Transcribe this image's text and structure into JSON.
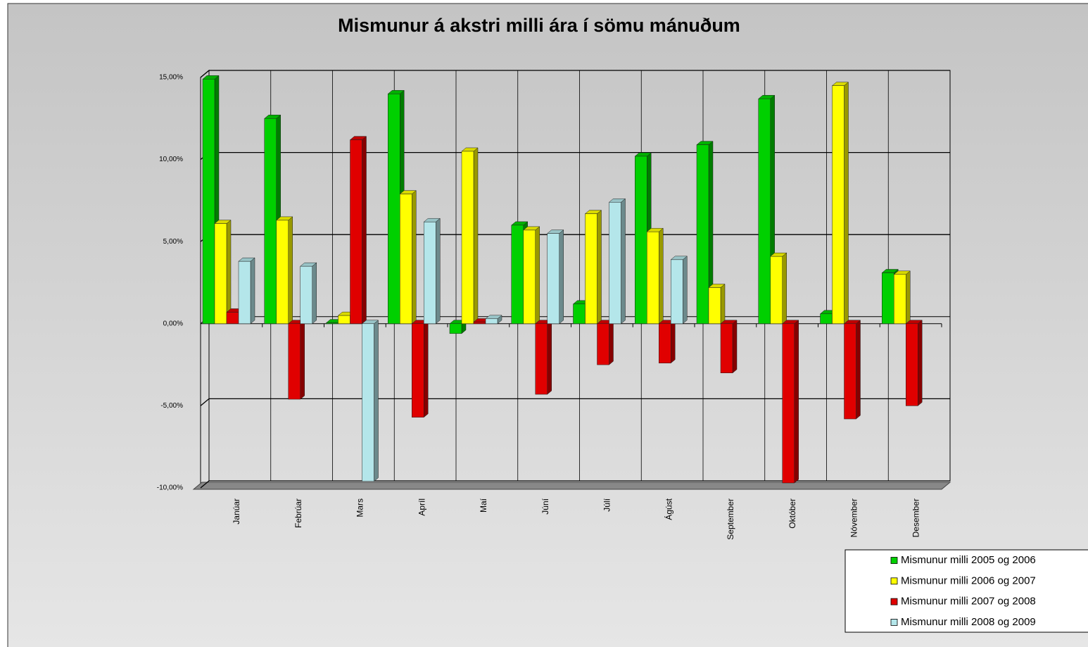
{
  "chart_data": {
    "type": "bar3d",
    "title": "Mismunur á akstri milli ára í sömu mánuðum",
    "categories": [
      "Janúar",
      "Febrúar",
      "Mars",
      "Apríl",
      "Maí",
      "Júní",
      "Júlí",
      "Ágúst",
      "September",
      "Október",
      "Nóvember",
      "Desember"
    ],
    "series": [
      {
        "name": "Mismunur milli 2005 og 2006",
        "color": "#00d000",
        "values": [
          14.9,
          12.5,
          0.05,
          14.0,
          -0.6,
          6.0,
          1.2,
          10.2,
          10.9,
          13.7,
          0.6,
          3.1
        ]
      },
      {
        "name": "Mismunur milli 2006 og 2007",
        "color": "#ffff00",
        "values": [
          6.1,
          6.3,
          0.5,
          7.9,
          10.5,
          5.7,
          6.7,
          5.6,
          2.2,
          4.1,
          14.5,
          3.0
        ]
      },
      {
        "name": "Mismunur milli 2007 og 2008",
        "color": "#e00000",
        "values": [
          0.7,
          -4.6,
          11.2,
          -5.7,
          0.1,
          -4.3,
          -2.5,
          -2.4,
          -3.0,
          -9.7,
          -5.8,
          -5.0
        ]
      },
      {
        "name": "Mismunur milli 2008 og 2009",
        "color": "#b4e6ea",
        "values": [
          3.8,
          3.5,
          -9.6,
          6.2,
          0.3,
          5.5,
          7.4,
          3.9,
          null,
          null,
          null,
          null
        ]
      }
    ],
    "ylim": [
      -10,
      15
    ],
    "yticks": [
      {
        "value": -10,
        "label": "-10,00%"
      },
      {
        "value": -5,
        "label": "-5,00%"
      },
      {
        "value": 0,
        "label": "0,00%"
      },
      {
        "value": 5,
        "label": "5,00%"
      },
      {
        "value": 10,
        "label": "10,00%"
      },
      {
        "value": 15,
        "label": "15,00%"
      }
    ],
    "grid": true,
    "legend": "bottom-right"
  }
}
